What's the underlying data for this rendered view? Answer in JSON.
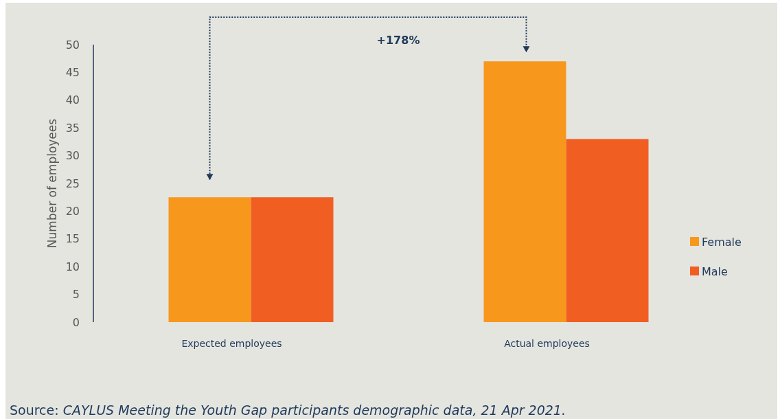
{
  "chart_data": {
    "type": "bar",
    "ylabel": "Number of employees",
    "categories": [
      "Expected employees",
      "Actual employees"
    ],
    "series": [
      {
        "name": "Female",
        "color": "#f7981d",
        "values": [
          22.5,
          47
        ]
      },
      {
        "name": "Male",
        "color": "#f15e22",
        "values": [
          22.5,
          33
        ]
      }
    ],
    "ylim": [
      0,
      50
    ],
    "yticks": [
      0,
      5,
      10,
      15,
      20,
      25,
      30,
      35,
      40,
      45,
      50
    ],
    "grid": false,
    "legend": "right",
    "annotations": [
      "+178%",
      "Source: CAYLUS Meeting the Youth Gap participants demographic data, 21 Apr 2021."
    ]
  }
}
